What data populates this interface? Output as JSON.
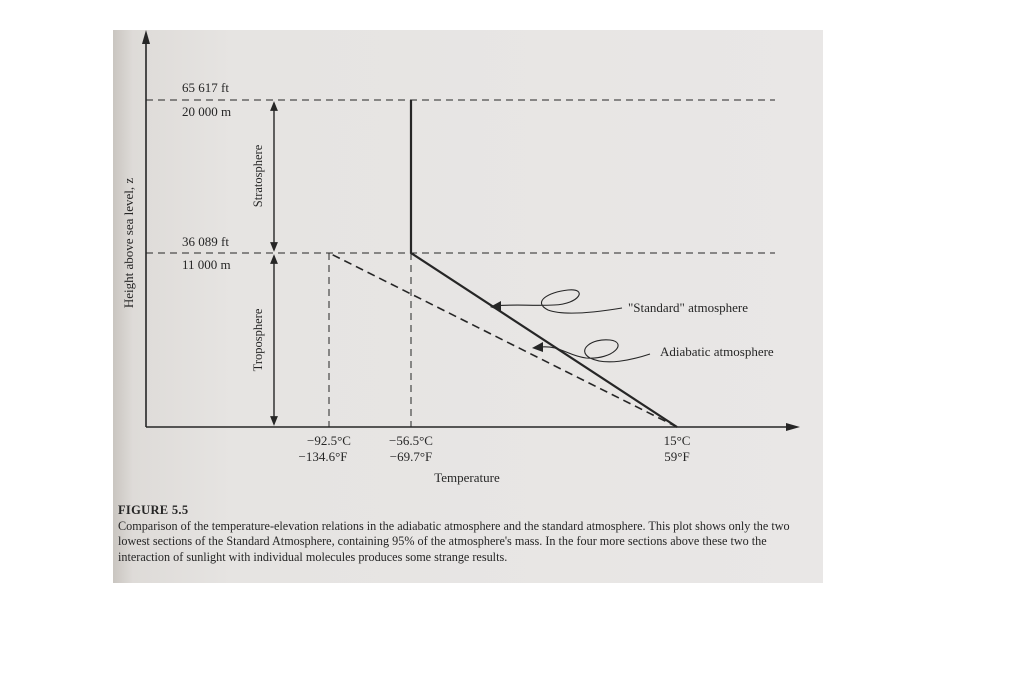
{
  "figure": {
    "number": "FIGURE 5.5",
    "caption": "Comparison of the temperature-elevation relations in the adiabatic atmosphere and the standard atmosphere. This plot shows only the two lowest sections of the Standard Atmosphere, containing 95% of the atmosphere's mass. In the four more sections above these two the interaction of sunlight with individual molecules produces some strange results."
  },
  "colors": {
    "ink": "#262626",
    "paper": "#e6e4e2"
  },
  "chart_data": {
    "type": "line",
    "xlabel": "Temperature",
    "ylabel": "Height above sea level, z",
    "y_ticks": [
      {
        "top": "65 617 ft",
        "bottom": "20 000 m",
        "value_m": 20000
      },
      {
        "top": "36 089 ft",
        "bottom": "11 000 m",
        "value_m": 11000
      }
    ],
    "x_ticks": [
      {
        "c": "−92.5°C",
        "f": "−134.6°F",
        "value_c": -92.5
      },
      {
        "c": "−56.5°C",
        "f": "−69.7°F",
        "value_c": -56.5
      },
      {
        "c": "15°C",
        "f": "59°F",
        "value_c": 15
      }
    ],
    "regions": [
      {
        "name": "Stratosphere",
        "from_m": 11000,
        "to_m": 20000
      },
      {
        "name": "Troposphere",
        "from_m": 0,
        "to_m": 11000
      }
    ],
    "series": [
      {
        "name": "\"Standard\" atmosphere",
        "style": "solid",
        "points": [
          {
            "t_c": 15,
            "z_m": 0
          },
          {
            "t_c": -56.5,
            "z_m": 11000
          },
          {
            "t_c": -56.5,
            "z_m": 20000
          }
        ]
      },
      {
        "name": "Adiabatic atmosphere",
        "style": "dashed",
        "points": [
          {
            "t_c": 15,
            "z_m": 0
          },
          {
            "t_c": -92.5,
            "z_m": 11000
          }
        ]
      }
    ]
  }
}
